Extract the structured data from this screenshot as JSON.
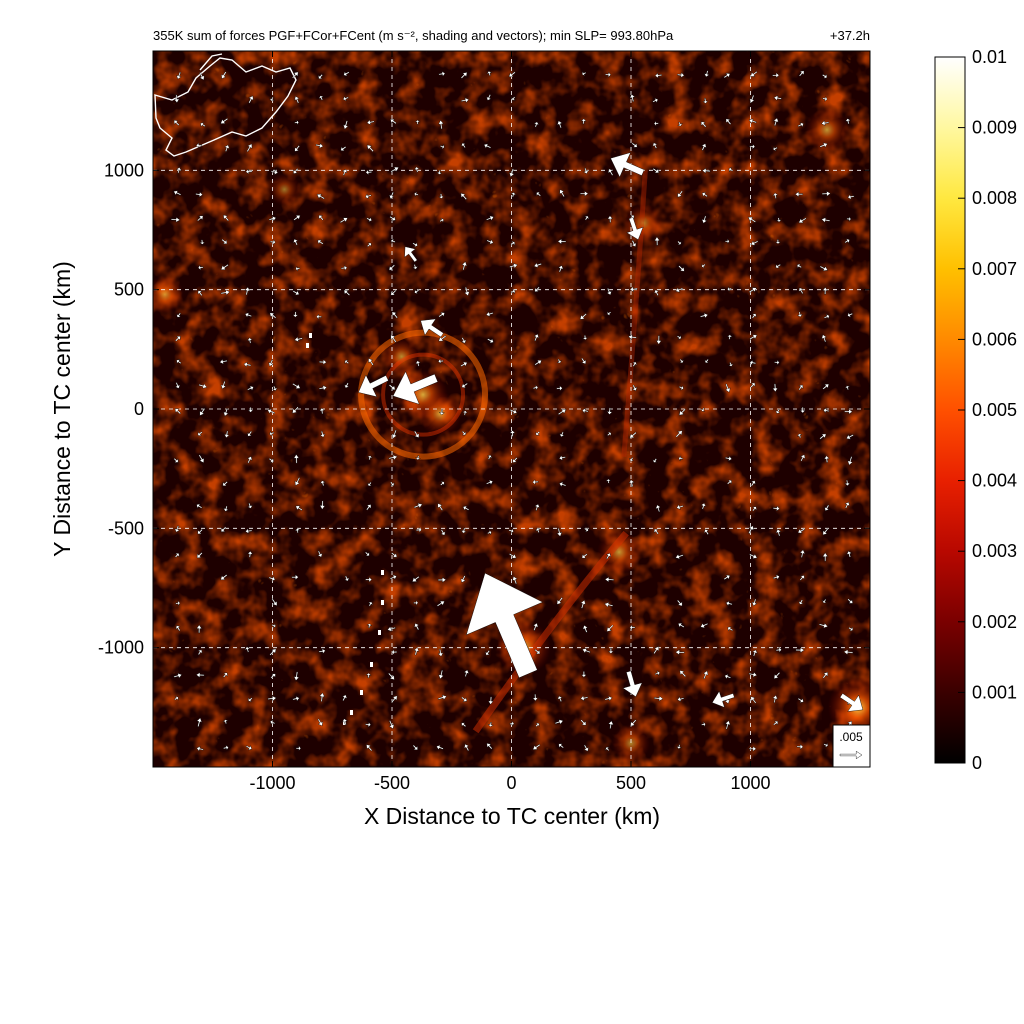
{
  "chart_data": {
    "type": "heatmap",
    "title": "355K sum of forces PGF+FCor+FCent (m s⁻², shading and vectors); min SLP= 993.80hPa",
    "time_label": "+37.2h",
    "xlabel": "X Distance to TC center (km)",
    "ylabel": "Y Distance to TC center (km)",
    "xlim": [
      -1500,
      1500
    ],
    "ylim": [
      -1500,
      1500
    ],
    "x_ticks": [
      -1000,
      -500,
      0,
      500,
      1000
    ],
    "y_ticks": [
      -1000,
      -500,
      0,
      500,
      1000
    ],
    "x_tick_labels": [
      "-1000",
      "-500",
      "0",
      "500",
      "1000"
    ],
    "y_tick_labels": [
      "-1000",
      "-500",
      "0",
      "500",
      "1000"
    ],
    "grid": true,
    "colorbar": {
      "min": 0,
      "max": 0.01,
      "ticks": [
        0,
        0.001,
        0.002,
        0.003,
        0.004,
        0.005,
        0.006,
        0.007,
        0.008,
        0.009,
        0.01
      ],
      "tick_labels": [
        "0",
        "0.001",
        "0.002",
        "0.003",
        "0.004",
        "0.005",
        "0.006",
        "0.007",
        "0.008",
        "0.009",
        "0.01"
      ],
      "colormap": [
        "#000000",
        "#3a0000",
        "#7a0000",
        "#b80800",
        "#e82000",
        "#ff5000",
        "#ff8a00",
        "#ffc000",
        "#ffe840",
        "#fff8a0",
        "#ffffff"
      ]
    },
    "reference_vector": {
      "label": ".005",
      "magnitude": 0.005
    },
    "highlights": [
      {
        "x": -370,
        "y": 60,
        "value": 0.006,
        "note": "TC core ring"
      },
      {
        "x": -460,
        "y": 220,
        "value": 0.004
      },
      {
        "x": -300,
        "y": -20,
        "value": 0.005
      },
      {
        "x": 50,
        "y": -1000,
        "value": 0.007
      },
      {
        "x": 450,
        "y": -600,
        "value": 0.005
      },
      {
        "x": 1450,
        "y": -1250,
        "value": 0.008
      },
      {
        "x": 550,
        "y": 780,
        "value": 0.004
      },
      {
        "x": -1450,
        "y": 480,
        "value": 0.004
      },
      {
        "x": 1320,
        "y": 1170,
        "value": 0.005
      },
      {
        "x": 500,
        "y": -1400,
        "value": 0.004
      },
      {
        "x": -950,
        "y": 920,
        "value": 0.003
      }
    ],
    "large_vectors": [
      {
        "x": 70,
        "y": -1110,
        "u": -0.012,
        "v": 0.028
      },
      {
        "x": -315,
        "y": 130,
        "u": -0.012,
        "v": -0.005
      },
      {
        "x": -520,
        "y": 130,
        "u": -0.008,
        "v": -0.004
      },
      {
        "x": 550,
        "y": 990,
        "u": -0.009,
        "v": 0.004
      },
      {
        "x": -290,
        "y": 310,
        "u": -0.006,
        "v": 0.004
      },
      {
        "x": 500,
        "y": 800,
        "u": 0.002,
        "v": -0.006
      },
      {
        "x": 490,
        "y": -1100,
        "u": 0.002,
        "v": -0.007
      },
      {
        "x": 1380,
        "y": -1200,
        "u": 0.006,
        "v": -0.004
      },
      {
        "x": 930,
        "y": -1200,
        "u": -0.006,
        "v": -0.002
      },
      {
        "x": -400,
        "y": 620,
        "u": -0.003,
        "v": 0.004
      }
    ]
  }
}
